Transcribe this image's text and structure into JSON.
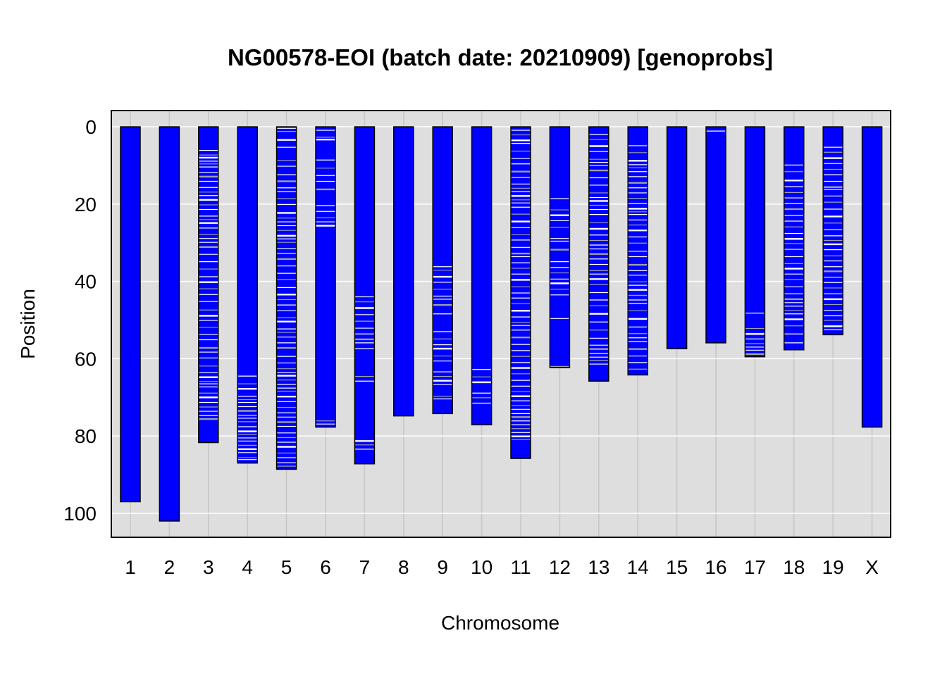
{
  "chart_data": {
    "type": "bar",
    "title": "NG00578-EOI (batch date: 20210909) [genoprobs]",
    "xlabel": "Chromosome",
    "ylabel": "Position",
    "ylim": [
      -4.2,
      106.2
    ],
    "y_reversed": true,
    "yticks": [
      0,
      20,
      40,
      60,
      80,
      100
    ],
    "grid": true,
    "categories": [
      "1",
      "2",
      "3",
      "4",
      "5",
      "6",
      "7",
      "8",
      "9",
      "10",
      "11",
      "12",
      "13",
      "14",
      "15",
      "16",
      "17",
      "18",
      "19",
      "X"
    ],
    "values": [
      97,
      102,
      81.7,
      87,
      88.6,
      77.7,
      87.2,
      74.8,
      74.2,
      77.1,
      85.8,
      62.3,
      65.8,
      64.2,
      57.4,
      55.9,
      59.5,
      57.7,
      53.8,
      77.7
    ],
    "colors": {
      "bar_fill": "#0000ff",
      "bar_stroke": "#000000",
      "marker_gray": "#a0a0a0",
      "marker_white": "#ffffff",
      "panel_bg": "#dedede",
      "grid": "#ffffff"
    },
    "markers": [
      [],
      [],
      [
        6.1,
        7.3,
        8.0,
        8.9,
        9.6,
        10.4,
        11.8,
        12.9,
        14.1,
        15.7,
        16.9,
        17.8,
        18.9,
        20.2,
        21.4,
        23.1,
        24.0,
        24.9,
        26.2,
        27.8,
        28.9,
        29.9,
        31.1,
        33.0,
        34.9,
        36.8,
        38.8,
        40.2,
        41.9,
        43.4,
        45.2,
        47.4,
        48.9,
        50.1,
        51.9,
        53.7,
        55.1,
        57.2,
        58.3,
        59.8,
        61.9,
        63.6,
        64.8,
        65.9,
        66.5,
        67.3,
        68.9,
        70.0,
        71.3,
        72.5,
        73.6,
        74.7,
        75.6
      ],
      [
        64.5,
        66.5,
        67.8,
        69.7,
        70.6,
        71.3,
        72.4,
        73.5,
        74.6,
        75.4,
        76.3,
        77.6,
        78.8,
        79.6,
        80.5,
        81.3,
        82.4,
        83.4,
        84.3,
        85.6,
        86.1
      ],
      [
        0.4,
        1.2,
        3.4,
        5.3,
        8.7,
        10.2,
        12.4,
        14.1,
        15.8,
        16.8,
        18.6,
        20.1,
        22.3,
        23.6,
        24.6,
        25.6,
        26.8,
        28.2,
        29.0,
        29.9,
        31.5,
        32.7,
        34.2,
        36.0,
        37.9,
        39.5,
        41.6,
        43.4,
        44.7,
        46.1,
        47.6,
        49.4,
        50.4,
        52.3,
        53.2,
        54.4,
        55.9,
        57.2,
        59.4,
        61.1,
        62.6,
        63.6,
        64.4,
        65.5,
        66.6,
        67.6,
        68.4,
        69.8,
        71.1,
        72.6,
        74.0,
        75.1,
        76.4,
        77.5,
        79.2,
        80.4,
        81.6,
        82.8,
        84.4,
        85.6,
        86.9,
        87.8
      ],
      [
        0.9,
        2.7,
        3.3,
        8.6,
        10.7,
        12.6,
        14.1,
        16.2,
        20.4,
        21.9,
        23.5,
        24.6,
        25.6,
        76.1,
        76.9
      ],
      [
        44.0,
        45.3,
        46.9,
        48.6,
        50.3,
        52.1,
        53.6,
        55.0,
        55.9,
        57.4,
        64.6,
        65.8,
        81.3,
        82.3,
        83.4
      ],
      [],
      [
        36.2,
        37.1,
        38.8,
        40.2,
        42.0,
        43.8,
        44.6,
        46.1,
        48.4,
        53.0,
        54.9,
        56.4,
        57.4,
        59.3,
        60.6,
        63.4,
        64.6,
        65.7,
        66.7,
        69.7,
        70.4
      ],
      [
        62.8,
        64.7,
        66.1,
        68.9,
        70.1,
        71.5
      ],
      [
        0.9,
        2.1,
        3.5,
        4.3,
        6.3,
        8.2,
        9.6,
        11.6,
        13.1,
        14.8,
        15.9,
        16.8,
        17.9,
        18.9,
        19.7,
        20.8,
        22.6,
        24.5,
        26.1,
        27.9,
        29.3,
        31.2,
        32.8,
        33.6,
        35.2,
        36.6,
        38.1,
        39.6,
        41.4,
        43.0,
        44.3,
        45.8,
        47.6,
        49.2,
        50.6,
        51.4,
        52.6,
        54.5,
        56.3,
        57.9,
        59.4,
        61.0,
        62.4,
        63.9,
        65.6,
        67.1,
        68.5,
        69.7,
        70.9,
        72.1,
        73.1,
        74.2,
        75.1,
        76.1,
        77.1,
        78.1,
        79.1,
        80.1,
        80.9
      ],
      [
        18.6,
        21.5,
        22.9,
        24.3,
        26.0,
        28.9,
        29.6,
        31.8,
        34.9,
        36.4,
        37.8,
        39.4,
        40.5,
        42.0,
        43.5,
        49.6,
        62.0
      ],
      [
        2.0,
        3.3,
        5.0,
        6.4,
        8.4,
        9.2,
        10.0,
        11.3,
        13.2,
        15.1,
        17.1,
        18.3,
        19.2,
        20.3,
        21.4,
        22.7,
        24.8,
        26.4,
        28.0,
        29.4,
        30.6,
        31.6,
        32.9,
        34.2,
        35.6,
        37.2,
        38.1,
        39.4,
        40.8,
        42.9,
        44.8,
        46.3,
        48.4,
        50.5,
        52.6,
        54.7,
        56.5,
        57.5,
        58.6,
        59.6,
        60.4,
        61.4
      ],
      [
        4.9,
        6.7,
        8.8,
        9.8,
        10.6,
        11.6,
        12.9,
        14.5,
        15.8,
        17.1,
        18.5,
        19.8,
        21.2,
        22.0,
        22.7,
        24.1,
        25.4,
        26.8,
        28.5,
        30.1,
        32.2,
        33.6,
        35.7,
        37.2,
        38.4,
        40.1,
        41.0,
        42.2,
        43.6,
        44.8,
        45.7,
        47.6,
        49.7,
        51.8,
        53.5,
        54.6,
        55.6,
        57.5,
        59.3,
        61.0,
        62.7
      ],
      [],
      [
        1.1
      ],
      [
        48.2,
        52.2,
        53.6,
        54.9,
        56.1,
        57.0,
        57.8,
        58.8
      ],
      [
        9.9,
        11.6,
        13.9,
        15.5,
        17.0,
        18.4,
        19.8,
        21.3,
        22.9,
        24.4,
        25.9,
        27.6,
        29.0,
        30.2,
        31.7,
        33.6,
        35.4,
        36.7,
        38.1,
        39.5,
        41.4,
        43.2,
        44.6,
        45.5,
        46.4,
        47.5,
        48.4,
        49.8,
        51.5,
        53.6,
        55.9
      ],
      [
        5.3,
        6.6,
        8.1,
        9.5,
        11.0,
        12.4,
        14.1,
        15.6,
        16.2,
        17.9,
        19.5,
        21.3,
        23.2,
        24.9,
        26.6,
        28.2,
        29.4,
        30.4,
        31.8,
        33.4,
        34.7,
        36.2,
        37.4,
        38.9,
        40.3,
        41.7,
        43.2,
        44.6,
        46.0,
        47.5,
        48.9,
        50.1,
        51.6,
        52.5
      ],
      []
    ]
  }
}
